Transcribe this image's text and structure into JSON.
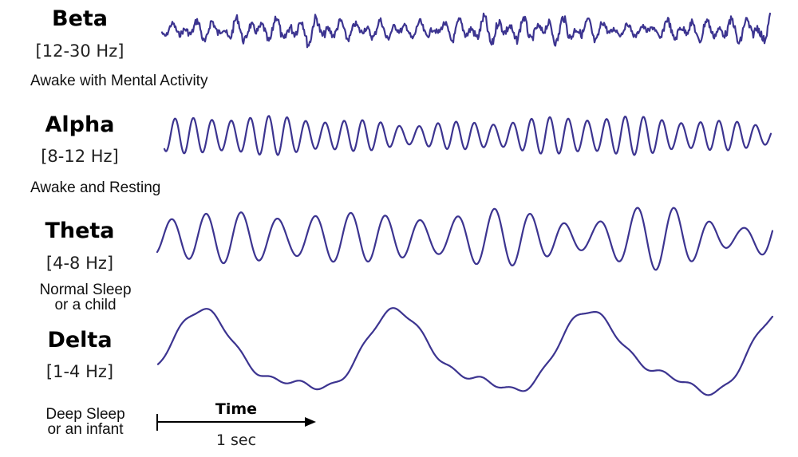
{
  "bands": [
    {
      "name": "Beta",
      "range": "[12-30 Hz]",
      "description": "Awake with Mental Activity"
    },
    {
      "name": "Alpha",
      "range": "[8-12 Hz]",
      "description": "Awake and Resting"
    },
    {
      "name": "Theta",
      "range": "[4-8 Hz]",
      "description_line1": "Normal Sleep",
      "description_line2": "or a child"
    },
    {
      "name": "Delta",
      "range": "[1-4 Hz]",
      "description_line1": "Deep Sleep",
      "description_line2": "or an infant"
    }
  ],
  "scale_bar": {
    "label": "Time",
    "duration": "1 sec"
  },
  "colors": {
    "wave": "#3c3490",
    "text": "#000000"
  }
}
